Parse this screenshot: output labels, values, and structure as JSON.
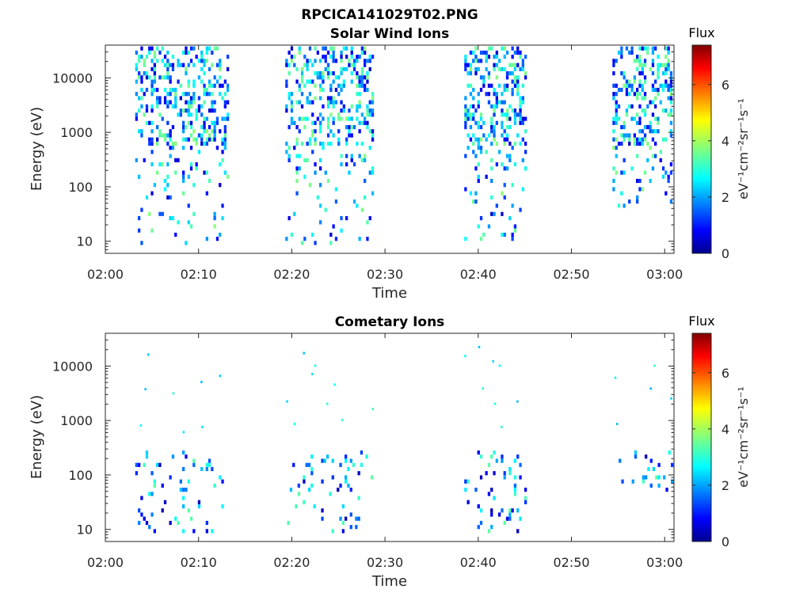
{
  "figure_title": "RPCICA141029T02.PNG",
  "colors": {
    "jet": [
      "#00008f",
      "#0000ff",
      "#0080ff",
      "#00ffff",
      "#80ff80",
      "#ffff00",
      "#ff8000",
      "#ff0000",
      "#800000"
    ],
    "axis": "#262626"
  },
  "chart_data": [
    {
      "type": "heatmap",
      "title": "Solar Wind Ions",
      "xlabel": "Time",
      "ylabel": "Energy (eV)",
      "x_ticks": [
        "02:00",
        "02:10",
        "02:20",
        "02:30",
        "02:40",
        "02:50",
        "03:00"
      ],
      "x_range_minutes": [
        0,
        61
      ],
      "y_scale": "log",
      "y_ticks": [
        10,
        100,
        1000,
        10000
      ],
      "y_tick_labels": [
        "10",
        "100",
        "1000",
        "10000"
      ],
      "y_range": [
        6,
        40000
      ],
      "colorbar": {
        "title": "Flux",
        "label": "eV⁻¹cm⁻²sr⁻¹s⁻¹",
        "ticks": [
          0,
          2,
          4,
          6
        ],
        "range": [
          0,
          7.4
        ]
      },
      "bursts": [
        {
          "start_min": 3.2,
          "end_min": 13.0,
          "energy_range": [
            8,
            32000
          ]
        },
        {
          "start_min": 19.3,
          "end_min": 28.8,
          "energy_range": [
            8,
            32000
          ]
        },
        {
          "start_min": 38.5,
          "end_min": 45.0,
          "energy_range": [
            8,
            32000
          ]
        },
        {
          "start_min": 54.4,
          "end_min": 60.8,
          "energy_range": [
            40,
            32000
          ]
        }
      ],
      "flux_range": [
        0.5,
        3.8
      ]
    },
    {
      "type": "heatmap",
      "title": "Cometary Ions",
      "xlabel": "Time",
      "ylabel": "Energy (eV)",
      "x_ticks": [
        "02:00",
        "02:10",
        "02:20",
        "02:30",
        "02:40",
        "02:50",
        "03:00"
      ],
      "x_range_minutes": [
        0,
        61
      ],
      "y_scale": "log",
      "y_ticks": [
        10,
        100,
        1000,
        10000
      ],
      "y_tick_labels": [
        "10",
        "100",
        "1000",
        "10000"
      ],
      "y_range": [
        6,
        40000
      ],
      "colorbar": {
        "title": "Flux",
        "label": "eV⁻¹cm⁻²sr⁻¹s⁻¹",
        "ticks": [
          0,
          2,
          4,
          6
        ],
        "range": [
          0,
          7.4
        ]
      },
      "bursts": [
        {
          "start_min": 3.2,
          "end_min": 12.5,
          "energy_range": [
            8,
            250
          ]
        },
        {
          "start_min": 19.5,
          "end_min": 28.5,
          "energy_range": [
            8,
            250
          ]
        },
        {
          "start_min": 38.5,
          "end_min": 45.0,
          "energy_range": [
            8,
            250
          ]
        },
        {
          "start_min": 54.5,
          "end_min": 60.8,
          "energy_range": [
            40,
            250
          ]
        }
      ],
      "sparse_points": [
        {
          "t": 4.5,
          "e": 16000
        },
        {
          "t": 4.2,
          "e": 3700
        },
        {
          "t": 7.2,
          "e": 3100
        },
        {
          "t": 10.2,
          "e": 5000
        },
        {
          "t": 12.2,
          "e": 6500
        },
        {
          "t": 3.7,
          "e": 800
        },
        {
          "t": 8.3,
          "e": 600
        },
        {
          "t": 10.3,
          "e": 750
        },
        {
          "t": 21.2,
          "e": 17000
        },
        {
          "t": 22.1,
          "e": 7000
        },
        {
          "t": 22.4,
          "e": 10000
        },
        {
          "t": 24.5,
          "e": 4500
        },
        {
          "t": 19.4,
          "e": 2200
        },
        {
          "t": 23.7,
          "e": 2000
        },
        {
          "t": 28.6,
          "e": 1600
        },
        {
          "t": 20.2,
          "e": 850
        },
        {
          "t": 25.3,
          "e": 1000
        },
        {
          "t": 38.5,
          "e": 15000
        },
        {
          "t": 40.0,
          "e": 22000
        },
        {
          "t": 41.5,
          "e": 12000
        },
        {
          "t": 42.2,
          "e": 10000
        },
        {
          "t": 40.4,
          "e": 3800
        },
        {
          "t": 41.7,
          "e": 2000
        },
        {
          "t": 44.1,
          "e": 2200
        },
        {
          "t": 42.4,
          "e": 750
        },
        {
          "t": 54.6,
          "e": 6000
        },
        {
          "t": 58.8,
          "e": 10000
        },
        {
          "t": 58.4,
          "e": 3800
        },
        {
          "t": 60.6,
          "e": 2500
        },
        {
          "t": 54.8,
          "e": 850
        }
      ],
      "flux_range": [
        0.3,
        3.5
      ]
    }
  ]
}
